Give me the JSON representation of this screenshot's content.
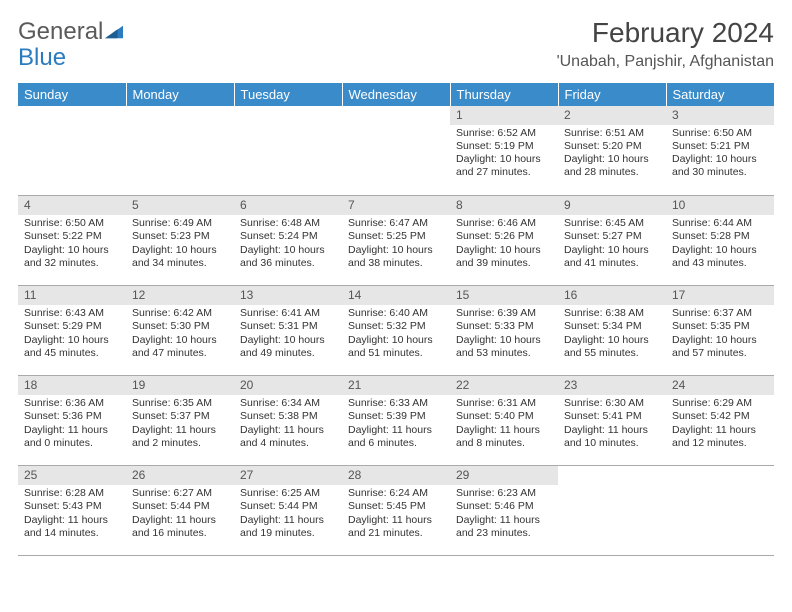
{
  "logo": {
    "general": "General",
    "blue": "Blue"
  },
  "title": "February 2024",
  "location": "'Unabah, Panjshir, Afghanistan",
  "colors": {
    "header_bg": "#3a8bc9",
    "header_text": "#ffffff",
    "daynum_bg": "#e6e6e6",
    "border": "#aaaaaa",
    "text": "#333333",
    "logo_gray": "#5a5a5a",
    "logo_blue": "#2b7bbf"
  },
  "weekdays": [
    "Sunday",
    "Monday",
    "Tuesday",
    "Wednesday",
    "Thursday",
    "Friday",
    "Saturday"
  ],
  "weeks": [
    [
      null,
      null,
      null,
      null,
      {
        "day": "1",
        "sunrise": "Sunrise: 6:52 AM",
        "sunset": "Sunset: 5:19 PM",
        "daylight": "Daylight: 10 hours and 27 minutes."
      },
      {
        "day": "2",
        "sunrise": "Sunrise: 6:51 AM",
        "sunset": "Sunset: 5:20 PM",
        "daylight": "Daylight: 10 hours and 28 minutes."
      },
      {
        "day": "3",
        "sunrise": "Sunrise: 6:50 AM",
        "sunset": "Sunset: 5:21 PM",
        "daylight": "Daylight: 10 hours and 30 minutes."
      }
    ],
    [
      {
        "day": "4",
        "sunrise": "Sunrise: 6:50 AM",
        "sunset": "Sunset: 5:22 PM",
        "daylight": "Daylight: 10 hours and 32 minutes."
      },
      {
        "day": "5",
        "sunrise": "Sunrise: 6:49 AM",
        "sunset": "Sunset: 5:23 PM",
        "daylight": "Daylight: 10 hours and 34 minutes."
      },
      {
        "day": "6",
        "sunrise": "Sunrise: 6:48 AM",
        "sunset": "Sunset: 5:24 PM",
        "daylight": "Daylight: 10 hours and 36 minutes."
      },
      {
        "day": "7",
        "sunrise": "Sunrise: 6:47 AM",
        "sunset": "Sunset: 5:25 PM",
        "daylight": "Daylight: 10 hours and 38 minutes."
      },
      {
        "day": "8",
        "sunrise": "Sunrise: 6:46 AM",
        "sunset": "Sunset: 5:26 PM",
        "daylight": "Daylight: 10 hours and 39 minutes."
      },
      {
        "day": "9",
        "sunrise": "Sunrise: 6:45 AM",
        "sunset": "Sunset: 5:27 PM",
        "daylight": "Daylight: 10 hours and 41 minutes."
      },
      {
        "day": "10",
        "sunrise": "Sunrise: 6:44 AM",
        "sunset": "Sunset: 5:28 PM",
        "daylight": "Daylight: 10 hours and 43 minutes."
      }
    ],
    [
      {
        "day": "11",
        "sunrise": "Sunrise: 6:43 AM",
        "sunset": "Sunset: 5:29 PM",
        "daylight": "Daylight: 10 hours and 45 minutes."
      },
      {
        "day": "12",
        "sunrise": "Sunrise: 6:42 AM",
        "sunset": "Sunset: 5:30 PM",
        "daylight": "Daylight: 10 hours and 47 minutes."
      },
      {
        "day": "13",
        "sunrise": "Sunrise: 6:41 AM",
        "sunset": "Sunset: 5:31 PM",
        "daylight": "Daylight: 10 hours and 49 minutes."
      },
      {
        "day": "14",
        "sunrise": "Sunrise: 6:40 AM",
        "sunset": "Sunset: 5:32 PM",
        "daylight": "Daylight: 10 hours and 51 minutes."
      },
      {
        "day": "15",
        "sunrise": "Sunrise: 6:39 AM",
        "sunset": "Sunset: 5:33 PM",
        "daylight": "Daylight: 10 hours and 53 minutes."
      },
      {
        "day": "16",
        "sunrise": "Sunrise: 6:38 AM",
        "sunset": "Sunset: 5:34 PM",
        "daylight": "Daylight: 10 hours and 55 minutes."
      },
      {
        "day": "17",
        "sunrise": "Sunrise: 6:37 AM",
        "sunset": "Sunset: 5:35 PM",
        "daylight": "Daylight: 10 hours and 57 minutes."
      }
    ],
    [
      {
        "day": "18",
        "sunrise": "Sunrise: 6:36 AM",
        "sunset": "Sunset: 5:36 PM",
        "daylight": "Daylight: 11 hours and 0 minutes."
      },
      {
        "day": "19",
        "sunrise": "Sunrise: 6:35 AM",
        "sunset": "Sunset: 5:37 PM",
        "daylight": "Daylight: 11 hours and 2 minutes."
      },
      {
        "day": "20",
        "sunrise": "Sunrise: 6:34 AM",
        "sunset": "Sunset: 5:38 PM",
        "daylight": "Daylight: 11 hours and 4 minutes."
      },
      {
        "day": "21",
        "sunrise": "Sunrise: 6:33 AM",
        "sunset": "Sunset: 5:39 PM",
        "daylight": "Daylight: 11 hours and 6 minutes."
      },
      {
        "day": "22",
        "sunrise": "Sunrise: 6:31 AM",
        "sunset": "Sunset: 5:40 PM",
        "daylight": "Daylight: 11 hours and 8 minutes."
      },
      {
        "day": "23",
        "sunrise": "Sunrise: 6:30 AM",
        "sunset": "Sunset: 5:41 PM",
        "daylight": "Daylight: 11 hours and 10 minutes."
      },
      {
        "day": "24",
        "sunrise": "Sunrise: 6:29 AM",
        "sunset": "Sunset: 5:42 PM",
        "daylight": "Daylight: 11 hours and 12 minutes."
      }
    ],
    [
      {
        "day": "25",
        "sunrise": "Sunrise: 6:28 AM",
        "sunset": "Sunset: 5:43 PM",
        "daylight": "Daylight: 11 hours and 14 minutes."
      },
      {
        "day": "26",
        "sunrise": "Sunrise: 6:27 AM",
        "sunset": "Sunset: 5:44 PM",
        "daylight": "Daylight: 11 hours and 16 minutes."
      },
      {
        "day": "27",
        "sunrise": "Sunrise: 6:25 AM",
        "sunset": "Sunset: 5:44 PM",
        "daylight": "Daylight: 11 hours and 19 minutes."
      },
      {
        "day": "28",
        "sunrise": "Sunrise: 6:24 AM",
        "sunset": "Sunset: 5:45 PM",
        "daylight": "Daylight: 11 hours and 21 minutes."
      },
      {
        "day": "29",
        "sunrise": "Sunrise: 6:23 AM",
        "sunset": "Sunset: 5:46 PM",
        "daylight": "Daylight: 11 hours and 23 minutes."
      },
      null,
      null
    ]
  ]
}
